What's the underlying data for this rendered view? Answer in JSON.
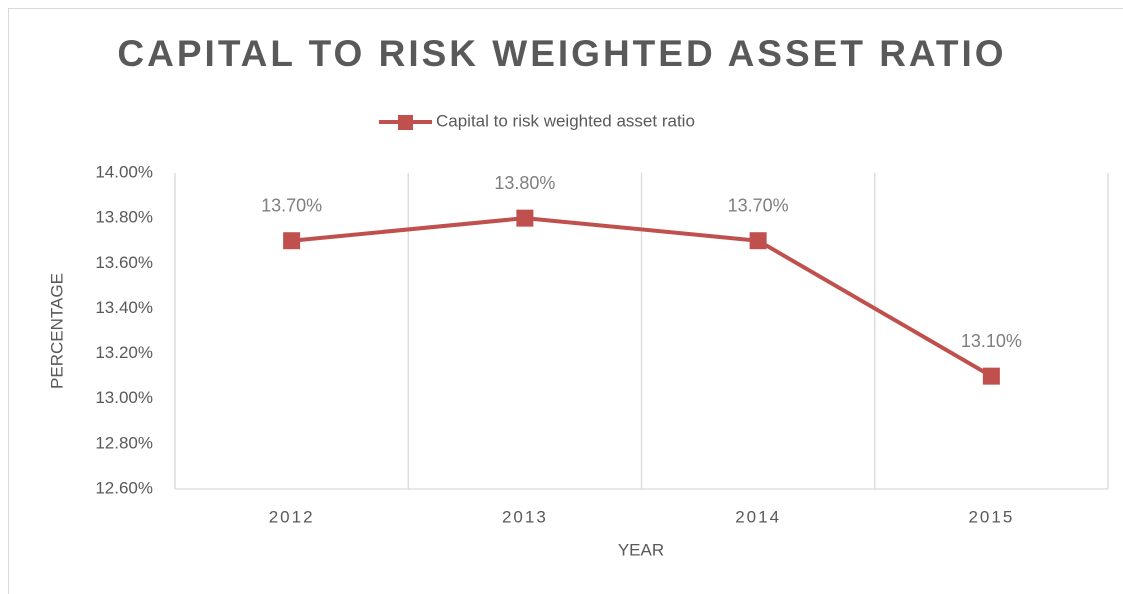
{
  "chart_data": {
    "type": "line",
    "title": "CAPITAL TO RISK WEIGHTED ASSET RATIO",
    "xlabel": "YEAR",
    "ylabel": "PERCENTAGE",
    "categories": [
      "2012",
      "2013",
      "2014",
      "2015"
    ],
    "series": [
      {
        "name": "Capital to risk weighted asset ratio",
        "color": "#c0504d",
        "values": [
          13.7,
          13.8,
          13.7,
          13.1
        ],
        "value_labels": [
          "13.70%",
          "13.80%",
          "13.70%",
          "13.10%"
        ]
      }
    ],
    "ylim": [
      12.6,
      14.0
    ],
    "yticks": [
      {
        "value": 12.6,
        "label": "12.60%"
      },
      {
        "value": 12.8,
        "label": "12.80%"
      },
      {
        "value": 13.0,
        "label": "13.00%"
      },
      {
        "value": 13.2,
        "label": "13.20%"
      },
      {
        "value": 13.4,
        "label": "13.40%"
      },
      {
        "value": 13.6,
        "label": "13.60%"
      },
      {
        "value": 13.8,
        "label": "13.80%"
      },
      {
        "value": 14.0,
        "label": "14.00%"
      }
    ],
    "grid": "x",
    "legend": "top"
  }
}
